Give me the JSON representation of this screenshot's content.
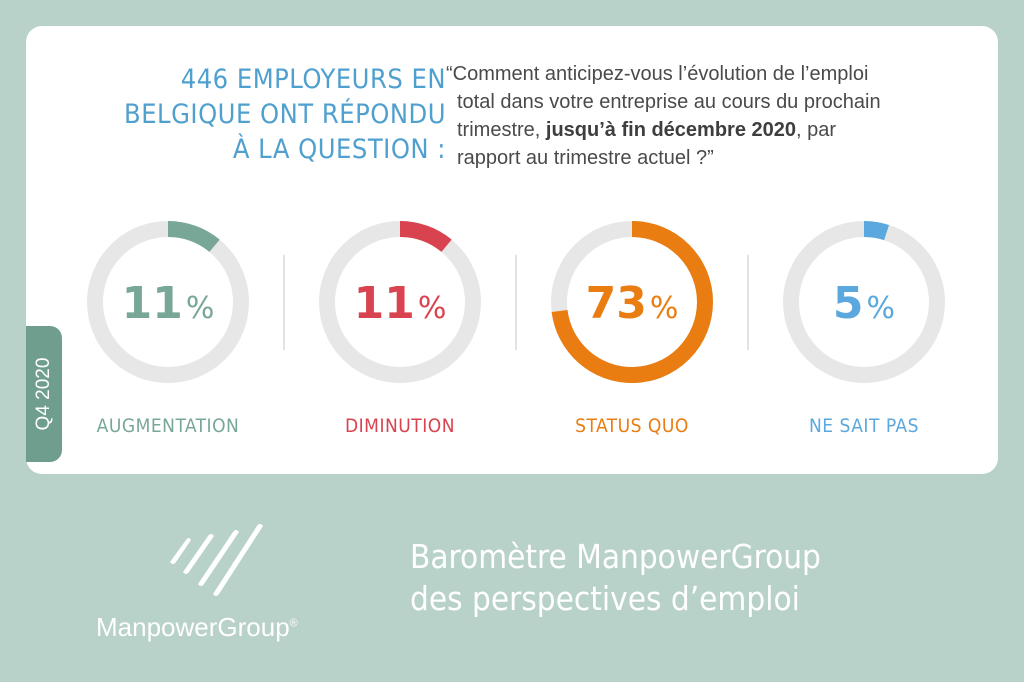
{
  "headline": {
    "line1": "446 EMPLOYEURS EN",
    "line2": "BELGIQUE ONT RÉPONDU",
    "line3": "À LA QUESTION :"
  },
  "question": {
    "line1": "“Comment anticipez-vous l’évolution de l’emploi",
    "line2": "total dans votre entreprise au cours du prochain",
    "line3_pre": "trimestre, ",
    "line3_bold": "jusqu’à fin décembre 2020",
    "line3_post": ", par",
    "line4": "rapport au trimestre actuel ?”"
  },
  "period": "Q4 2020",
  "chart_data": {
    "type": "pie",
    "style": "donut",
    "unit": "%",
    "series": [
      {
        "label": "AUGMENTATION",
        "value": 11,
        "color": "#78a797"
      },
      {
        "label": "DIMINUTION",
        "value": 11,
        "color": "#d9434f"
      },
      {
        "label": "STATUS QUO",
        "value": 73,
        "color": "#e97d12"
      },
      {
        "label": "NE SAIT PAS",
        "value": 5,
        "color": "#5aa8dd"
      }
    ],
    "track_color": "#e7e7e7"
  },
  "footer": {
    "title_line1": "Baromètre ManpowerGroup",
    "title_line2": "des perspectives d’emploi",
    "brand": "ManpowerGroup",
    "brand_mark": "®"
  }
}
